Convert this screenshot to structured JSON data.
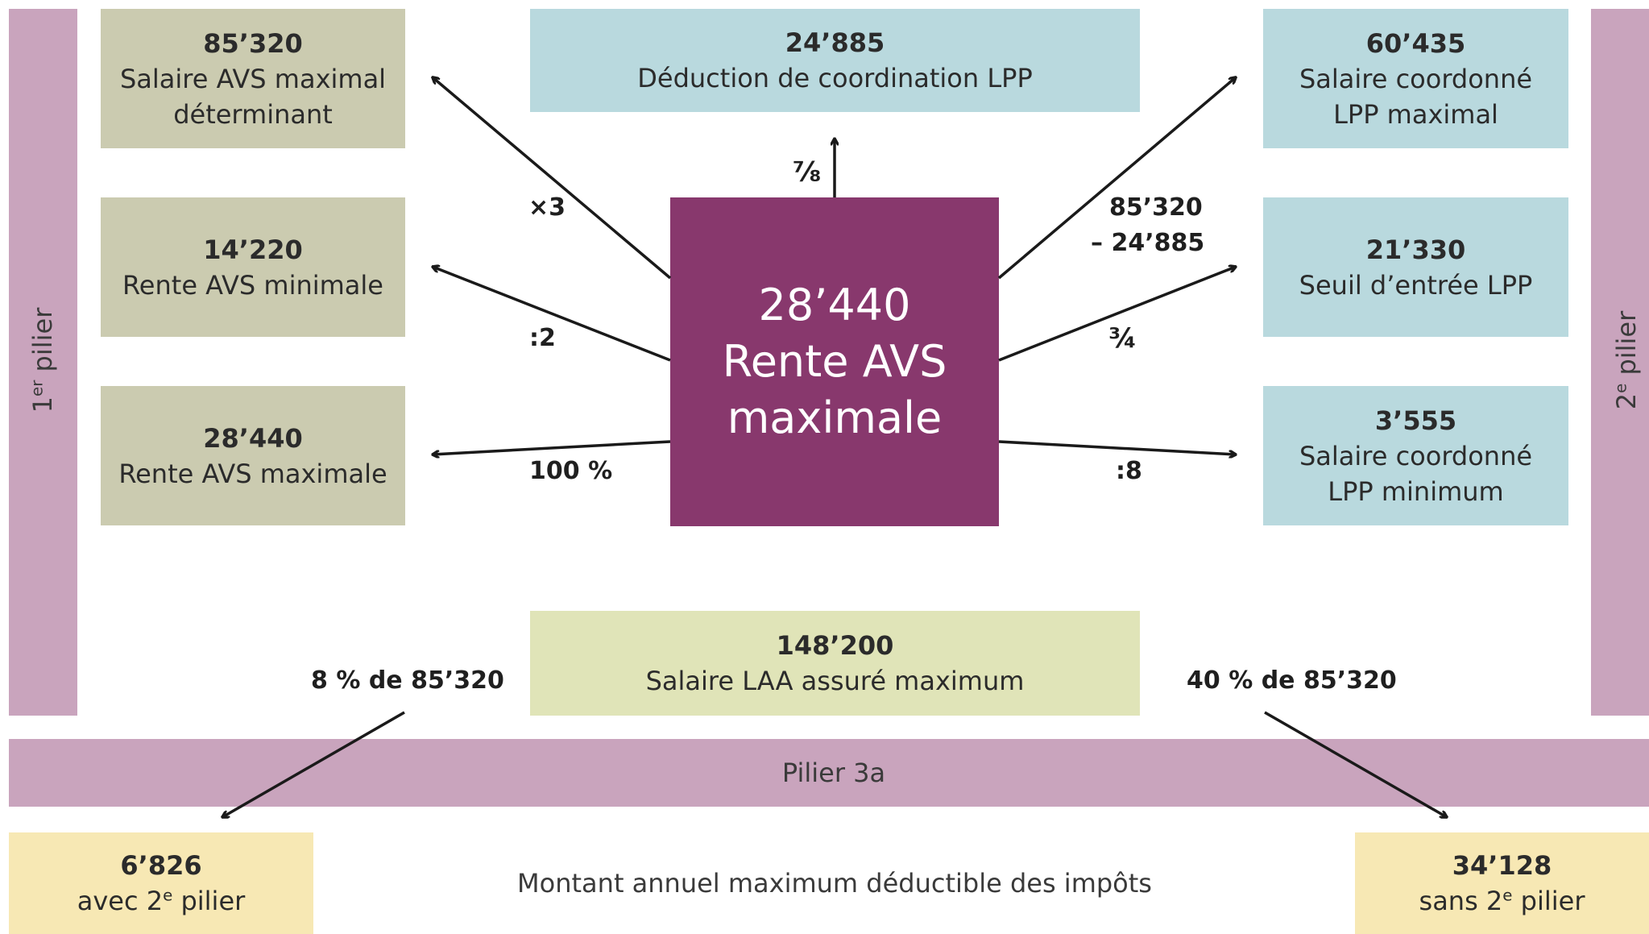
{
  "pillars": {
    "first": {
      "text": "1",
      "sup": "er",
      "suffix": " pilier"
    },
    "second": {
      "text": "2",
      "sup": "e",
      "suffix": " pilier"
    },
    "third": {
      "label": "Pilier 3a"
    }
  },
  "center": {
    "line1": "28’440",
    "line2": "Rente AVS",
    "line3": "maximale"
  },
  "left_boxes": [
    {
      "value": "85’320",
      "line1": "Salaire AVS maximal",
      "line2": "déterminant"
    },
    {
      "value": "14’220",
      "line1": "Rente AVS minimale"
    },
    {
      "value": "28’440",
      "line1": "Rente AVS maximale"
    }
  ],
  "top_box": {
    "value": "24’885",
    "line1": "Déduction de coordination LPP"
  },
  "right_boxes": [
    {
      "value": "60’435",
      "line1": "Salaire coordonné",
      "line2": "LPP maximal"
    },
    {
      "value": "21’330",
      "line1": "Seuil d’entrée LPP"
    },
    {
      "value": "3’555",
      "line1": "Salaire coordonné",
      "line2": "LPP minimum"
    }
  ],
  "laa_box": {
    "value": "148’200",
    "line1": "Salaire LAA assuré maximum"
  },
  "operators": {
    "times3": "×3",
    "div2": ":2",
    "pct100": "100 %",
    "seven_eighths": "⅞",
    "minus_line1": "85’320",
    "minus_line2": "– 24’885",
    "three_quarters": "¾",
    "div8": ":8",
    "pct8": "8 % de 85’320",
    "pct40": "40 % de 85’320"
  },
  "bottom": {
    "left": {
      "value": "6’826",
      "text": "avec 2",
      "sup": "e",
      "suffix": " pilier"
    },
    "right": {
      "value": "34’128",
      "text": "sans 2",
      "sup": "e",
      "suffix": " pilier"
    },
    "caption": "Montant annuel maximum déductible des impôts"
  },
  "colors": {
    "center": "#88386d",
    "pillar": "#c9a4bd",
    "olive": "#cbcbb0",
    "blue": "#b9d9de",
    "lime": "#e0e4b8",
    "cream": "#f7e8b4"
  }
}
